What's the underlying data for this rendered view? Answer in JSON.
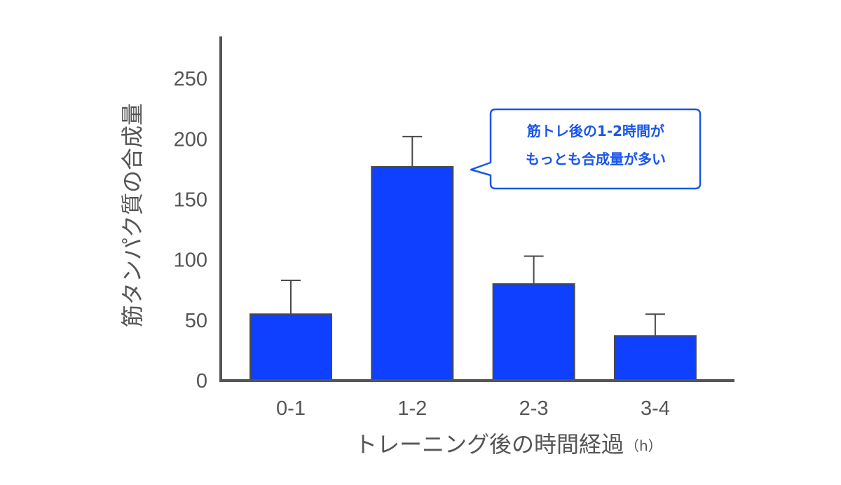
{
  "chart_data": {
    "type": "bar",
    "title": "",
    "xlabel": "トレーニング後の時間経過",
    "xlabel_unit": "（h）",
    "ylabel": "筋タンパク質の合成量",
    "categories": [
      "0-1",
      "1-2",
      "2-3",
      "3-4"
    ],
    "values": [
      55,
      177,
      80,
      37
    ],
    "error_upper": [
      83,
      202,
      103,
      55
    ],
    "ylim": [
      0,
      285
    ],
    "yticks": [
      0,
      50,
      100,
      150,
      200,
      250
    ],
    "grid": false,
    "annotation": {
      "lines": [
        "筋トレ後の1-2時間が",
        "もっとも合成量が多い"
      ],
      "points_to": "1-2"
    }
  },
  "colors": {
    "bar_fill": "#0f3fff",
    "bar_stroke": "#4a4a4a",
    "axis": "#555555",
    "callout_border": "#1a56e8",
    "callout_text": "#1a56e8"
  }
}
